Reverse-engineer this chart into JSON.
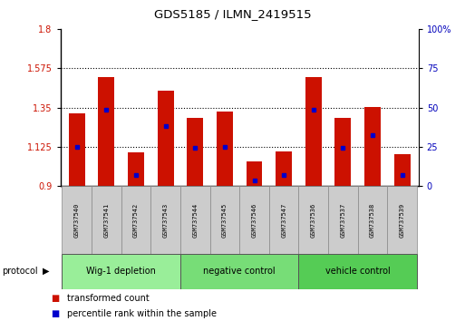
{
  "title": "GDS5185 / ILMN_2419515",
  "samples": [
    "GSM737540",
    "GSM737541",
    "GSM737542",
    "GSM737543",
    "GSM737544",
    "GSM737545",
    "GSM737546",
    "GSM737547",
    "GSM737536",
    "GSM737537",
    "GSM737538",
    "GSM737539"
  ],
  "groups": [
    {
      "label": "Wig-1 depletion",
      "indices": [
        0,
        1,
        2,
        3
      ],
      "color": "#99ee99"
    },
    {
      "label": "negative control",
      "indices": [
        4,
        5,
        6,
        7
      ],
      "color": "#77dd77"
    },
    {
      "label": "vehicle control",
      "indices": [
        8,
        9,
        10,
        11
      ],
      "color": "#55cc55"
    }
  ],
  "red_values": [
    1.315,
    1.525,
    1.095,
    1.445,
    1.29,
    1.325,
    1.04,
    1.1,
    1.525,
    1.29,
    1.355,
    1.085
  ],
  "blue_values": [
    1.125,
    1.34,
    0.965,
    1.245,
    1.12,
    1.125,
    0.935,
    0.965,
    1.34,
    1.12,
    1.19,
    0.965
  ],
  "ymin": 0.9,
  "ymax": 1.8,
  "yticks_left": [
    0.9,
    1.125,
    1.35,
    1.575,
    1.8
  ],
  "ytick_labels_left": [
    "0.9",
    "1.125",
    "1.35",
    "1.575",
    "1.8"
  ],
  "yticks_right_pct": [
    0,
    25,
    50,
    75,
    100
  ],
  "ytick_labels_right": [
    "0",
    "25",
    "50",
    "75",
    "100%"
  ],
  "grid_values": [
    1.125,
    1.35,
    1.575
  ],
  "bar_color": "#cc1100",
  "marker_color": "#0000cc",
  "bar_width": 0.55,
  "label_color_left": "#cc1100",
  "label_color_right": "#0000bb",
  "legend_red_label": "transformed count",
  "legend_blue_label": "percentile rank within the sample",
  "protocol_label": "protocol"
}
